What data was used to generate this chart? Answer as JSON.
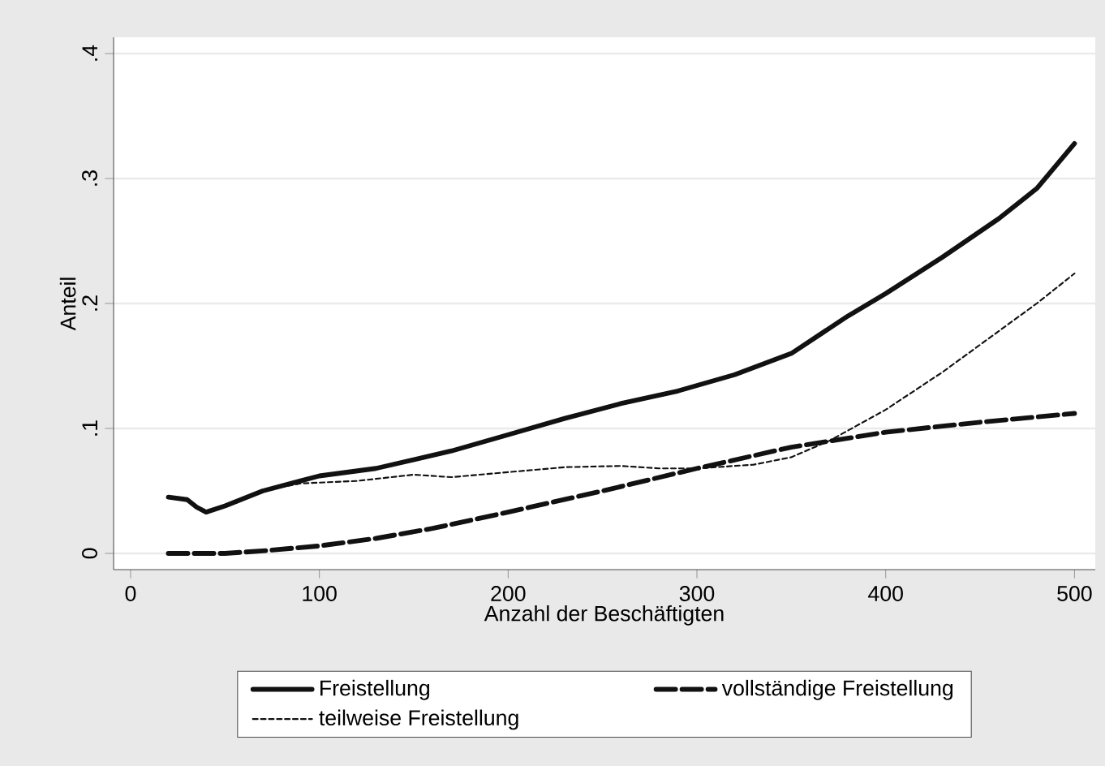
{
  "chart_data": {
    "type": "line",
    "xlabel": "Anzahl der Beschäftigten",
    "ylabel": "Anteil",
    "xlim": [
      -9,
      511
    ],
    "ylim": [
      -0.013,
      0.413
    ],
    "xticks": [
      0,
      100,
      200,
      300,
      400,
      500
    ],
    "yticks": [
      {
        "value": 0,
        "label": "0"
      },
      {
        "value": 0.1,
        "label": ".1"
      },
      {
        "value": 0.2,
        "label": ".2"
      },
      {
        "value": 0.3,
        "label": ".3"
      },
      {
        "value": 0.4,
        "label": ".4"
      }
    ],
    "grid": "y",
    "legend": "bottom",
    "marker": "none",
    "series": [
      {
        "name": "Freistellung",
        "color": "#111111",
        "line_style": "solid",
        "x": [
          20,
          30,
          35,
          40,
          50,
          70,
          90,
          100,
          130,
          150,
          170,
          200,
          230,
          260,
          290,
          320,
          350,
          380,
          400,
          430,
          460,
          480,
          500
        ],
        "values": [
          0.045,
          0.043,
          0.037,
          0.033,
          0.038,
          0.05,
          0.058,
          0.062,
          0.068,
          0.075,
          0.082,
          0.095,
          0.108,
          0.12,
          0.13,
          0.143,
          0.16,
          0.19,
          0.208,
          0.237,
          0.268,
          0.292,
          0.328
        ]
      },
      {
        "name": "vollständige Freistellung",
        "color": "#111111",
        "line_style": "dashed",
        "x": [
          20,
          50,
          70,
          100,
          130,
          160,
          200,
          250,
          300,
          350,
          400,
          450,
          500
        ],
        "values": [
          0,
          0,
          0.002,
          0.006,
          0.012,
          0.02,
          0.033,
          0.05,
          0.068,
          0.085,
          0.097,
          0.105,
          0.112
        ]
      },
      {
        "name": "teilweise Freistellung",
        "color": "#111111",
        "line_style": "dotted",
        "x": [
          20,
          30,
          35,
          40,
          50,
          70,
          90,
          120,
          150,
          170,
          200,
          230,
          260,
          280,
          300,
          330,
          350,
          370,
          400,
          430,
          460,
          480,
          500
        ],
        "values": [
          0.045,
          0.043,
          0.037,
          0.033,
          0.038,
          0.05,
          0.056,
          0.058,
          0.063,
          0.061,
          0.065,
          0.069,
          0.07,
          0.068,
          0.068,
          0.071,
          0.077,
          0.09,
          0.115,
          0.145,
          0.178,
          0.2,
          0.224
        ]
      }
    ]
  }
}
